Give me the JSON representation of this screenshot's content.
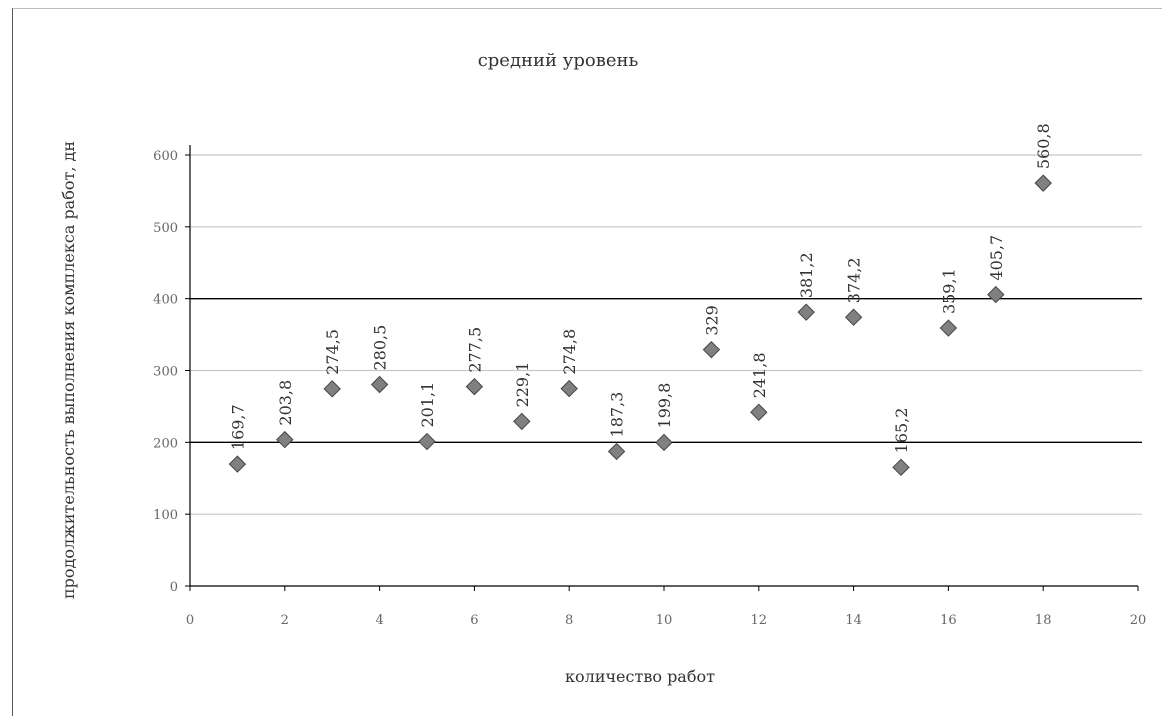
{
  "chart_data": {
    "type": "scatter",
    "title": "средний уровень",
    "xlabel": "количество работ",
    "ylabel": "продолжительность выполнения комплекса работ, дн",
    "xlim": [
      0,
      20
    ],
    "ylim": [
      0,
      600
    ],
    "x_ticks": [
      "0",
      "2",
      "4",
      "6",
      "8",
      "10",
      "12",
      "14",
      "16",
      "18",
      "20"
    ],
    "y_ticks": [
      "0",
      "100",
      "200",
      "300",
      "400",
      "500",
      "600"
    ],
    "reference_lines": [
      200,
      400
    ],
    "grid": true,
    "colors": {
      "marker": "#808080",
      "grid": "#c8c8c8",
      "reference": "#000000"
    },
    "points": [
      {
        "x": 1,
        "y": 169.7,
        "label": "169,7"
      },
      {
        "x": 2,
        "y": 203.8,
        "label": "203,8"
      },
      {
        "x": 3,
        "y": 274.5,
        "label": "274,5"
      },
      {
        "x": 4,
        "y": 280.5,
        "label": "280,5"
      },
      {
        "x": 5,
        "y": 201.1,
        "label": "201,1"
      },
      {
        "x": 6,
        "y": 277.5,
        "label": "277,5"
      },
      {
        "x": 7,
        "y": 229.1,
        "label": "229,1"
      },
      {
        "x": 8,
        "y": 274.8,
        "label": "274,8"
      },
      {
        "x": 9,
        "y": 187.3,
        "label": "187,3"
      },
      {
        "x": 10,
        "y": 199.8,
        "label": "199,8"
      },
      {
        "x": 11,
        "y": 329,
        "label": "329"
      },
      {
        "x": 12,
        "y": 241.8,
        "label": "241,8"
      },
      {
        "x": 13,
        "y": 381.2,
        "label": "381,2"
      },
      {
        "x": 14,
        "y": 374.2,
        "label": "374,2"
      },
      {
        "x": 15,
        "y": 165.2,
        "label": "165,2"
      },
      {
        "x": 16,
        "y": 359.1,
        "label": "359,1"
      },
      {
        "x": 17,
        "y": 405.7,
        "label": "405,7"
      },
      {
        "x": 18,
        "y": 560.8,
        "label": "560,8"
      }
    ]
  }
}
